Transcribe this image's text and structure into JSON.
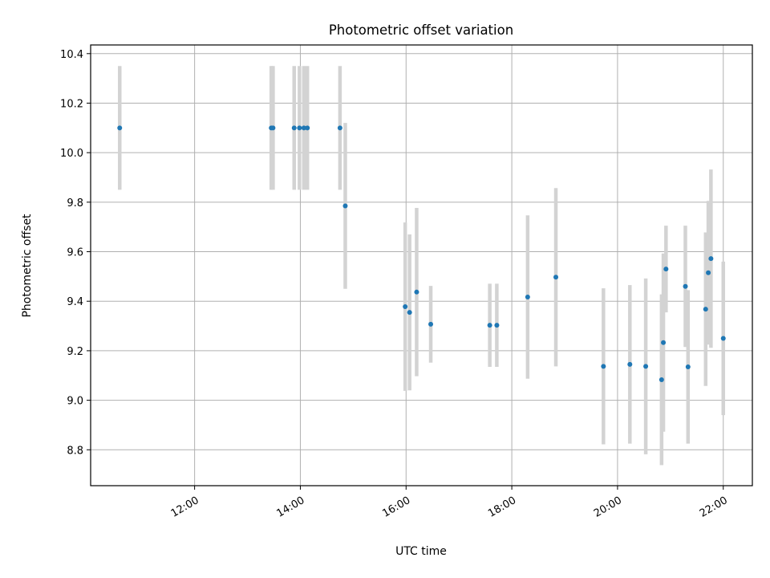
{
  "chart_data": {
    "type": "scatter",
    "title": "Photometric offset variation",
    "xlabel": "UTC time",
    "ylabel": "Photometric offset",
    "x_unit": "hours (UTC)",
    "xlim": [
      "10:02",
      "22:33"
    ],
    "ylim": [
      8.655,
      10.435
    ],
    "xticks": [
      "12:00",
      "14:00",
      "16:00",
      "18:00",
      "20:00",
      "22:00"
    ],
    "yticks": [
      "8.8",
      "9.0",
      "9.2",
      "9.4",
      "9.6",
      "9.8",
      "10.0",
      "10.2",
      "10.4"
    ],
    "grid": true,
    "legend": "none",
    "point_color": "#1f77b4",
    "errorbar_color": "#d3d3d3",
    "series": [
      {
        "points": [
          {
            "x": "10:35",
            "y": 10.1,
            "yerr": 0.25
          },
          {
            "x": "13:27",
            "y": 10.1,
            "yerr": 0.25
          },
          {
            "x": "13:29",
            "y": 10.1,
            "yerr": 0.25
          },
          {
            "x": "13:53",
            "y": 10.1,
            "yerr": 0.25
          },
          {
            "x": "13:59",
            "y": 10.1,
            "yerr": 0.25
          },
          {
            "x": "14:04",
            "y": 10.1,
            "yerr": 0.25
          },
          {
            "x": "14:08",
            "y": 10.1,
            "yerr": 0.25
          },
          {
            "x": "14:45",
            "y": 10.1,
            "yerr": 0.25
          },
          {
            "x": "14:51",
            "y": 9.785,
            "yerr": 0.335
          },
          {
            "x": "15:59",
            "y": 9.378,
            "yerr": 0.34
          },
          {
            "x": "16:04",
            "y": 9.355,
            "yerr": 0.315
          },
          {
            "x": "16:12",
            "y": 9.437,
            "yerr": 0.34
          },
          {
            "x": "16:28",
            "y": 9.307,
            "yerr": 0.155
          },
          {
            "x": "17:35",
            "y": 9.303,
            "yerr": 0.168
          },
          {
            "x": "17:43",
            "y": 9.303,
            "yerr": 0.168
          },
          {
            "x": "18:18",
            "y": 9.417,
            "yerr": 0.33
          },
          {
            "x": "18:50",
            "y": 9.497,
            "yerr": 0.36
          },
          {
            "x": "19:44",
            "y": 9.137,
            "yerr": 0.315
          },
          {
            "x": "20:14",
            "y": 9.145,
            "yerr": 0.32
          },
          {
            "x": "20:32",
            "y": 9.137,
            "yerr": 0.355
          },
          {
            "x": "20:50",
            "y": 9.083,
            "yerr": 0.345
          },
          {
            "x": "20:52",
            "y": 9.233,
            "yerr": 0.36
          },
          {
            "x": "20:55",
            "y": 9.53,
            "yerr": 0.175
          },
          {
            "x": "21:17",
            "y": 9.46,
            "yerr": 0.245
          },
          {
            "x": "21:20",
            "y": 9.135,
            "yerr": 0.31
          },
          {
            "x": "21:40",
            "y": 9.368,
            "yerr": 0.31
          },
          {
            "x": "21:43",
            "y": 9.515,
            "yerr": 0.29
          },
          {
            "x": "21:46",
            "y": 9.572,
            "yerr": 0.36
          },
          {
            "x": "22:00",
            "y": 9.25,
            "yerr": 0.31
          }
        ]
      }
    ]
  }
}
